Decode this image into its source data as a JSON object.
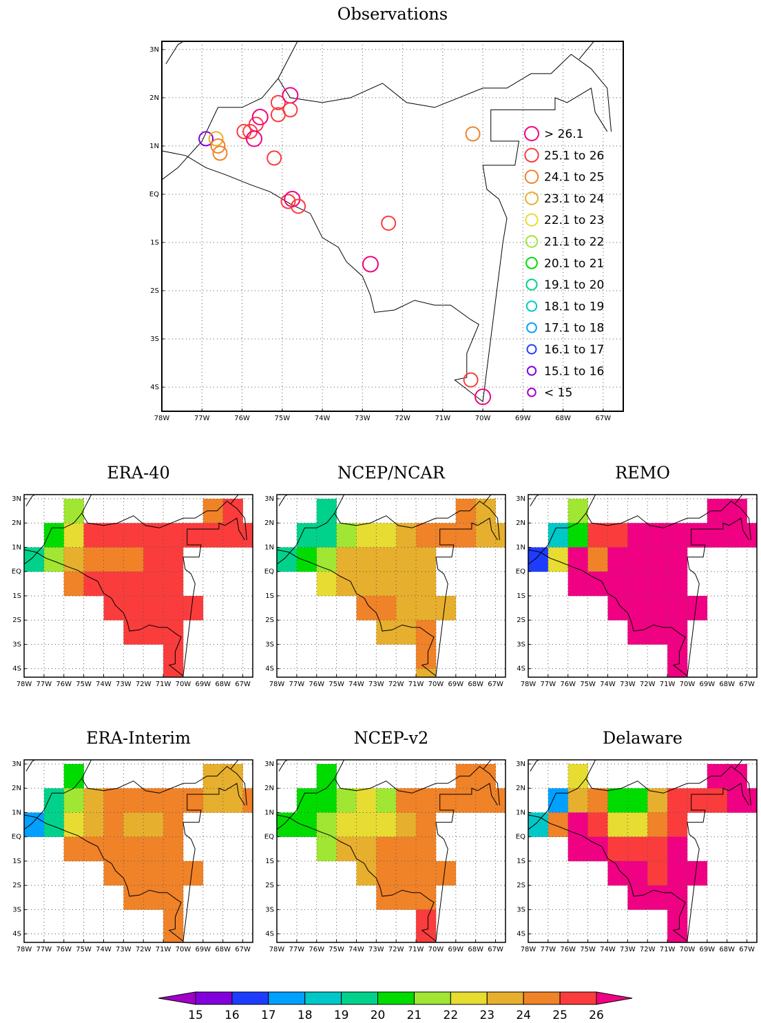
{
  "axes": {
    "xticks": [
      {
        "value": -78,
        "label": "78W"
      },
      {
        "value": -77,
        "label": "77W"
      },
      {
        "value": -76,
        "label": "76W"
      },
      {
        "value": -75,
        "label": "75W"
      },
      {
        "value": -74,
        "label": "74W"
      },
      {
        "value": -73,
        "label": "73W"
      },
      {
        "value": -72,
        "label": "72W"
      },
      {
        "value": -71,
        "label": "71W"
      },
      {
        "value": -70,
        "label": "70W"
      },
      {
        "value": -69,
        "label": "69W"
      },
      {
        "value": -68,
        "label": "68W"
      },
      {
        "value": -67,
        "label": "67W"
      }
    ],
    "yticks": [
      {
        "value": 3,
        "label": "3N"
      },
      {
        "value": 2,
        "label": "2N"
      },
      {
        "value": 1,
        "label": "1N"
      },
      {
        "value": 0,
        "label": "EQ"
      },
      {
        "value": -1,
        "label": "1S"
      },
      {
        "value": -2,
        "label": "2S"
      },
      {
        "value": -3,
        "label": "3S"
      },
      {
        "value": -4,
        "label": "4S"
      }
    ],
    "grid": true
  },
  "colorbar": {
    "levels": [
      15,
      16,
      17,
      18,
      19,
      20,
      21,
      22,
      23,
      24,
      25,
      26
    ],
    "colors": [
      "#a000c8",
      "#8200dc",
      "#1e3cff",
      "#00a0ff",
      "#00c8c8",
      "#00d28c",
      "#00dc00",
      "#a0e632",
      "#e6dc32",
      "#e6af2d",
      "#f08228",
      "#fa3c3c",
      "#f00082"
    ]
  },
  "observations": {
    "title": "Observations",
    "xlim": [
      -78,
      -66.5
    ],
    "ylim": [
      -4.5,
      3.17
    ],
    "legend": [
      "> 26.1",
      "25.1 to 26",
      "24.1 to 25",
      "23.1 to 24",
      "22.1 to 23",
      "21.1 to 22",
      "20.1 to 21",
      "19.1 to 20",
      "18.1 to 19",
      "17.1 to 18",
      "16.1 to 17",
      "15.1 to 16",
      "< 15"
    ],
    "points": [
      {
        "lon": -76.9,
        "lat": 1.15,
        "value": 15.5
      },
      {
        "lon": -76.65,
        "lat": 1.15,
        "value": 23.5
      },
      {
        "lon": -76.6,
        "lat": 1.0,
        "value": 24.5
      },
      {
        "lon": -76.55,
        "lat": 0.85,
        "value": 24.5
      },
      {
        "lon": -75.95,
        "lat": 1.3,
        "value": 25.5
      },
      {
        "lon": -75.8,
        "lat": 1.3,
        "value": 25.5
      },
      {
        "lon": -75.65,
        "lat": 1.45,
        "value": 25.5
      },
      {
        "lon": -75.55,
        "lat": 1.6,
        "value": 26.5
      },
      {
        "lon": -75.7,
        "lat": 1.15,
        "value": 26.5
      },
      {
        "lon": -75.1,
        "lat": 1.9,
        "value": 25.5
      },
      {
        "lon": -75.1,
        "lat": 1.65,
        "value": 25.5
      },
      {
        "lon": -74.8,
        "lat": 2.05,
        "value": 26.5
      },
      {
        "lon": -74.8,
        "lat": 1.75,
        "value": 25.5
      },
      {
        "lon": -75.2,
        "lat": 0.75,
        "value": 25.5
      },
      {
        "lon": -74.85,
        "lat": -0.15,
        "value": 25.5
      },
      {
        "lon": -74.75,
        "lat": -0.1,
        "value": 26.5
      },
      {
        "lon": -74.6,
        "lat": -0.25,
        "value": 25.5
      },
      {
        "lon": -72.35,
        "lat": -0.6,
        "value": 25.5
      },
      {
        "lon": -72.8,
        "lat": -1.45,
        "value": 26.5
      },
      {
        "lon": -70.25,
        "lat": 1.25,
        "value": 24.5
      },
      {
        "lon": -70.3,
        "lat": -3.85,
        "value": 25.5
      },
      {
        "lon": -70.0,
        "lat": -4.2,
        "value": 26.5
      }
    ]
  },
  "grid_lons": [
    -77.5,
    -76.5,
    -75.5,
    -74.5,
    -73.5,
    -72.5,
    -71.5,
    -70.5,
    -69.5,
    -68.5,
    -67.5,
    -66.5
  ],
  "grid_lats": [
    2.5,
    1.5,
    0.5,
    -0.5,
    -1.5,
    -2.5,
    -3.5,
    -4.5
  ],
  "panel_xlim": [
    -78,
    -66.5
  ],
  "panel_ylim": [
    -4.35,
    3.17
  ],
  "panels": [
    {
      "title": "ERA-40",
      "grid": [
        [
          null,
          null,
          21.5,
          null,
          null,
          null,
          null,
          null,
          null,
          24.5,
          25.5,
          null
        ],
        [
          null,
          20.5,
          22.5,
          25.5,
          25.5,
          25.5,
          25.5,
          25.5,
          25.5,
          25.5,
          25.5,
          25.5
        ],
        [
          19.5,
          21.5,
          23.5,
          24.5,
          24.5,
          24.5,
          25.5,
          25.5,
          null,
          null,
          null,
          null
        ],
        [
          null,
          null,
          24.5,
          25.5,
          25.5,
          25.5,
          25.5,
          25.5,
          null,
          null,
          null,
          null
        ],
        [
          null,
          null,
          null,
          null,
          25.5,
          25.5,
          25.5,
          25.5,
          25.5,
          null,
          null,
          null
        ],
        [
          null,
          null,
          null,
          null,
          null,
          25.5,
          25.5,
          25.5,
          null,
          null,
          null,
          null
        ],
        [
          null,
          null,
          null,
          null,
          null,
          null,
          null,
          25.5,
          null,
          null,
          null,
          null
        ],
        [
          null,
          null,
          null,
          null,
          null,
          null,
          null,
          25.5,
          null,
          null,
          null,
          null
        ]
      ]
    },
    {
      "title": "NCEP/NCAR",
      "grid": [
        [
          null,
          null,
          19.5,
          null,
          null,
          null,
          null,
          null,
          null,
          24.5,
          23.5,
          null
        ],
        [
          null,
          19.5,
          19.5,
          21.5,
          22.5,
          22.5,
          23.5,
          24.5,
          24.5,
          24.5,
          23.5,
          23.5
        ],
        [
          19.5,
          20.5,
          21.5,
          23.5,
          23.5,
          23.5,
          23.5,
          23.5,
          null,
          null,
          null,
          null
        ],
        [
          null,
          null,
          22.5,
          23.5,
          23.5,
          23.5,
          23.5,
          23.5,
          null,
          null,
          null,
          null
        ],
        [
          null,
          null,
          null,
          null,
          24.5,
          24.5,
          23.5,
          23.5,
          23.5,
          null,
          null,
          null
        ],
        [
          null,
          null,
          null,
          null,
          null,
          23.5,
          23.5,
          24.5,
          null,
          null,
          null,
          null
        ],
        [
          null,
          null,
          null,
          null,
          null,
          null,
          null,
          24.5,
          null,
          null,
          null,
          null
        ],
        [
          null,
          null,
          null,
          null,
          null,
          null,
          null,
          23.5,
          null,
          null,
          null,
          null
        ]
      ]
    },
    {
      "title": "REMO",
      "grid": [
        [
          null,
          null,
          21.5,
          null,
          null,
          null,
          null,
          null,
          null,
          26.5,
          26.5,
          null
        ],
        [
          null,
          18.5,
          20.5,
          25.5,
          25.5,
          26.5,
          26.5,
          26.5,
          26.5,
          26.5,
          26.5,
          26.5
        ],
        [
          16.5,
          22.5,
          26.5,
          24.5,
          26.5,
          26.5,
          26.5,
          26.5,
          null,
          null,
          null,
          null
        ],
        [
          null,
          null,
          26.5,
          26.5,
          26.5,
          26.5,
          26.5,
          26.5,
          null,
          null,
          null,
          null
        ],
        [
          null,
          null,
          null,
          null,
          26.5,
          26.5,
          26.5,
          26.5,
          26.5,
          null,
          null,
          null
        ],
        [
          null,
          null,
          null,
          null,
          null,
          26.5,
          26.5,
          26.5,
          null,
          null,
          null,
          null
        ],
        [
          null,
          null,
          null,
          null,
          null,
          null,
          null,
          26.5,
          null,
          null,
          null,
          null
        ],
        [
          null,
          null,
          null,
          null,
          null,
          null,
          null,
          26.5,
          null,
          null,
          null,
          null
        ]
      ]
    },
    {
      "title": "ERA-Interim",
      "grid": [
        [
          null,
          null,
          20.5,
          null,
          null,
          null,
          null,
          null,
          null,
          23.5,
          23.5,
          null
        ],
        [
          null,
          19.5,
          21.5,
          23.5,
          24.5,
          24.5,
          24.5,
          24.5,
          24.5,
          23.5,
          23.5,
          24.5
        ],
        [
          17.5,
          19.5,
          22.5,
          23.5,
          24.5,
          23.5,
          23.5,
          24.5,
          null,
          null,
          null,
          null
        ],
        [
          null,
          null,
          24.5,
          24.5,
          24.5,
          24.5,
          24.5,
          24.5,
          null,
          null,
          null,
          null
        ],
        [
          null,
          null,
          null,
          null,
          24.5,
          24.5,
          24.5,
          24.5,
          24.5,
          null,
          null,
          null
        ],
        [
          null,
          null,
          null,
          null,
          null,
          24.5,
          24.5,
          24.5,
          null,
          null,
          null,
          null
        ],
        [
          null,
          null,
          null,
          null,
          null,
          null,
          null,
          24.5,
          null,
          null,
          null,
          null
        ],
        [
          null,
          null,
          null,
          null,
          null,
          null,
          null,
          24.5,
          null,
          null,
          null,
          null
        ]
      ]
    },
    {
      "title": "NCEP-v2",
      "grid": [
        [
          null,
          null,
          20.5,
          null,
          null,
          null,
          null,
          null,
          null,
          24.5,
          24.5,
          null
        ],
        [
          null,
          20.5,
          20.5,
          21.5,
          22.5,
          21.5,
          24.5,
          24.5,
          24.5,
          24.5,
          24.5,
          24.5
        ],
        [
          20.5,
          20.5,
          21.5,
          22.5,
          22.5,
          22.5,
          23.5,
          24.5,
          null,
          null,
          null,
          null
        ],
        [
          null,
          null,
          21.5,
          23.5,
          23.5,
          24.5,
          24.5,
          24.5,
          null,
          null,
          null,
          null
        ],
        [
          null,
          null,
          null,
          null,
          23.5,
          24.5,
          24.5,
          24.5,
          24.5,
          null,
          null,
          null
        ],
        [
          null,
          null,
          null,
          null,
          null,
          24.5,
          24.5,
          24.5,
          null,
          null,
          null,
          null
        ],
        [
          null,
          null,
          null,
          null,
          null,
          null,
          null,
          25.5,
          null,
          null,
          null,
          null
        ],
        [
          null,
          null,
          null,
          null,
          null,
          null,
          null,
          25.5,
          null,
          null,
          null,
          null
        ]
      ]
    },
    {
      "title": "Delaware",
      "grid": [
        [
          null,
          null,
          22.5,
          null,
          null,
          null,
          null,
          null,
          null,
          26.5,
          26.5,
          null
        ],
        [
          null,
          17.5,
          23.5,
          24.5,
          20.5,
          20.5,
          23.5,
          25.5,
          25.5,
          25.5,
          26.5,
          26.5
        ],
        [
          18.5,
          24.5,
          26.5,
          25.5,
          22.5,
          22.5,
          24.5,
          25.5,
          null,
          null,
          null,
          null
        ],
        [
          null,
          null,
          26.5,
          26.5,
          25.5,
          25.5,
          25.5,
          26.5,
          null,
          null,
          null,
          null
        ],
        [
          null,
          null,
          null,
          null,
          26.5,
          26.5,
          25.5,
          26.5,
          26.5,
          null,
          null,
          null
        ],
        [
          null,
          null,
          null,
          null,
          null,
          26.5,
          26.5,
          26.5,
          null,
          null,
          null,
          null
        ],
        [
          null,
          null,
          null,
          null,
          null,
          null,
          null,
          26.5,
          null,
          null,
          null,
          null
        ],
        [
          null,
          null,
          null,
          null,
          null,
          null,
          null,
          26.5,
          null,
          null,
          null,
          null
        ]
      ]
    }
  ]
}
